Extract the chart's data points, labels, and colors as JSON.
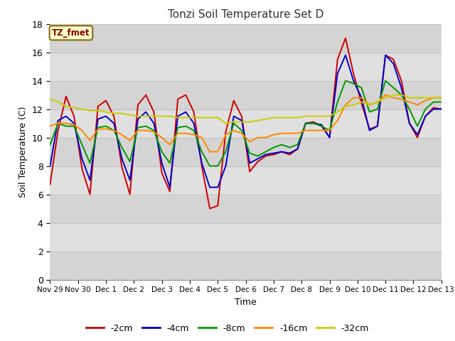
{
  "title": "Tonzi Soil Temperature Set D",
  "xlabel": "Time",
  "ylabel": "Soil Temperature (C)",
  "annotation": "TZ_fmet",
  "ylim": [
    0,
    18
  ],
  "yticks": [
    0,
    2,
    4,
    6,
    8,
    10,
    12,
    14,
    16,
    18
  ],
  "series_colors": [
    "#cc0000",
    "#0000cc",
    "#009900",
    "#ff8800",
    "#cccc00"
  ],
  "series_labels": [
    "-2cm",
    "-4cm",
    "-8cm",
    "-16cm",
    "-32cm"
  ],
  "x_tick_labels": [
    "Nov 29",
    "Nov 30",
    "Dec 1",
    "Dec 2",
    "Dec 3",
    "Dec 4",
    "Dec 5",
    "Dec 6",
    "Dec 7",
    "Dec 8",
    "Dec 9",
    "Dec 10",
    "Dec 11",
    "Dec 12",
    "Dec 13"
  ],
  "t_2cm": [
    6.7,
    10.5,
    12.9,
    11.5,
    7.8,
    6.0,
    12.2,
    12.6,
    11.5,
    7.9,
    6.0,
    12.3,
    13.0,
    11.8,
    7.5,
    6.2,
    12.7,
    13.0,
    11.8,
    8.0,
    5.0,
    5.2,
    10.4,
    12.6,
    11.5,
    7.6,
    8.3,
    8.7,
    8.8,
    9.0,
    8.8,
    9.2,
    11.0,
    11.1,
    10.8,
    10.0,
    15.5,
    17.0,
    14.5,
    12.4,
    10.6,
    10.8,
    15.8,
    15.5,
    14.0,
    11.0,
    10.0,
    11.5,
    12.1,
    12.0
  ],
  "t_4cm": [
    8.0,
    11.2,
    11.5,
    11.0,
    8.5,
    7.0,
    11.3,
    11.5,
    11.0,
    8.5,
    7.0,
    11.3,
    11.8,
    11.0,
    8.2,
    6.5,
    11.5,
    11.8,
    11.0,
    8.2,
    6.5,
    6.5,
    8.0,
    11.5,
    11.2,
    8.2,
    8.5,
    8.8,
    8.9,
    9.0,
    8.9,
    9.2,
    11.0,
    11.0,
    10.9,
    10.0,
    14.5,
    15.8,
    14.0,
    12.8,
    10.5,
    10.8,
    15.8,
    15.2,
    13.5,
    11.0,
    10.2,
    11.5,
    12.0,
    12.0
  ],
  "t_8cm": [
    9.5,
    11.0,
    10.8,
    10.8,
    9.5,
    8.2,
    10.7,
    10.8,
    10.5,
    9.3,
    8.3,
    10.7,
    10.8,
    10.5,
    9.0,
    8.2,
    10.7,
    10.8,
    10.5,
    9.0,
    8.0,
    8.0,
    9.0,
    11.0,
    10.5,
    8.9,
    8.7,
    9.0,
    9.3,
    9.5,
    9.3,
    9.5,
    11.0,
    11.0,
    10.8,
    10.5,
    12.5,
    14.0,
    13.8,
    13.5,
    11.8,
    12.0,
    14.0,
    13.5,
    13.0,
    12.0,
    10.8,
    12.0,
    12.5,
    12.5
  ],
  "t_16cm": [
    10.8,
    11.0,
    11.0,
    10.9,
    10.5,
    9.8,
    10.6,
    10.6,
    10.5,
    10.2,
    9.8,
    10.5,
    10.5,
    10.4,
    10.0,
    9.5,
    10.3,
    10.3,
    10.2,
    10.0,
    9.0,
    9.0,
    10.2,
    10.5,
    10.3,
    9.7,
    10.0,
    10.0,
    10.2,
    10.3,
    10.3,
    10.3,
    10.5,
    10.5,
    10.5,
    10.5,
    11.2,
    12.3,
    12.8,
    12.8,
    12.3,
    12.5,
    13.0,
    12.8,
    12.7,
    12.5,
    12.3,
    12.6,
    12.8,
    12.8
  ],
  "t_32cm": [
    12.7,
    12.5,
    12.2,
    12.1,
    12.0,
    11.9,
    11.9,
    11.8,
    11.7,
    11.7,
    11.6,
    11.5,
    11.5,
    11.5,
    11.5,
    11.5,
    11.4,
    11.4,
    11.4,
    11.4,
    11.4,
    11.4,
    11.0,
    11.1,
    11.1,
    11.1,
    11.2,
    11.3,
    11.4,
    11.4,
    11.4,
    11.4,
    11.5,
    11.5,
    11.5,
    11.5,
    11.8,
    12.2,
    12.3,
    12.5,
    12.3,
    12.5,
    12.8,
    13.0,
    13.0,
    12.8,
    12.8,
    12.8,
    12.8,
    12.8
  ]
}
